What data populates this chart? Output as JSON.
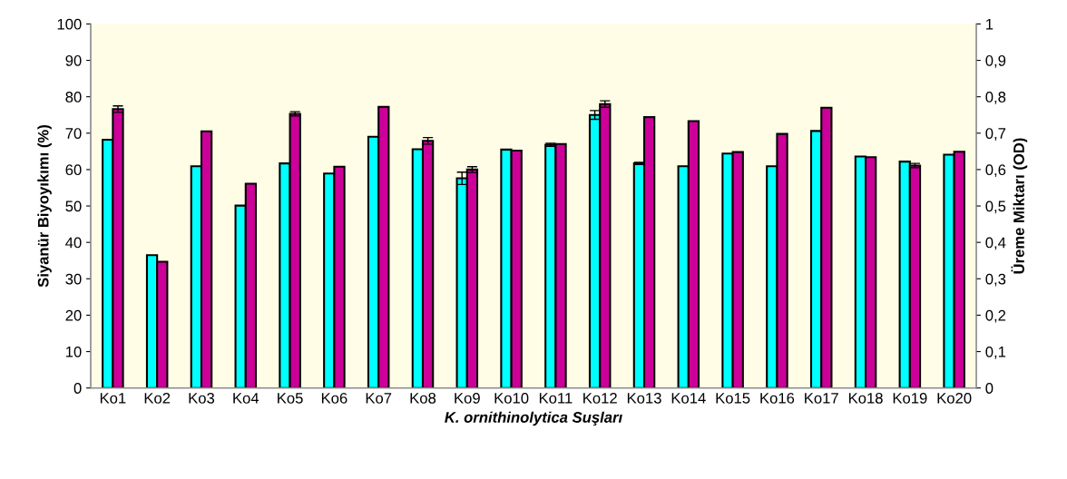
{
  "chart_data": {
    "type": "bar",
    "categories": [
      "Ko1",
      "Ko2",
      "Ko3",
      "Ko4",
      "Ko5",
      "Ko6",
      "Ko7",
      "Ko8",
      "Ko9",
      "Ko10",
      "Ko11",
      "Ko12",
      "Ko13",
      "Ko14",
      "Ko15",
      "Ko16",
      "Ko17",
      "Ko18",
      "Ko19",
      "Ko20"
    ],
    "series": [
      {
        "color": "#00ffff",
        "values": [
          68.2,
          36.5,
          60.9,
          50.1,
          61.7,
          58.9,
          69.0,
          65.6,
          57.6,
          65.5,
          66.8,
          75.0,
          61.7,
          60.9,
          64.4,
          60.9,
          70.6,
          63.6,
          62.2,
          64.1
        ],
        "errors": [
          null,
          null,
          null,
          null,
          null,
          null,
          null,
          null,
          1.7,
          null,
          0.4,
          1.2,
          0.3,
          null,
          null,
          null,
          null,
          null,
          null,
          null
        ]
      },
      {
        "color": "#cc0099",
        "axis": "y2",
        "values": [
          0.766,
          0.347,
          0.705,
          0.561,
          0.753,
          0.608,
          0.772,
          0.679,
          0.6,
          0.652,
          0.67,
          0.78,
          0.744,
          0.733,
          0.648,
          0.698,
          0.77,
          0.634,
          0.611,
          0.649
        ],
        "errors": [
          0.009,
          null,
          null,
          null,
          0.006,
          null,
          null,
          0.009,
          0.008,
          null,
          null,
          0.009,
          null,
          null,
          null,
          null,
          null,
          null,
          0.006,
          null
        ]
      }
    ],
    "xlabel": "K. ornithinolytica Suşları",
    "ylabel": "Siyanür Biyoyıkımı (%)",
    "y2label": "Üreme Miktarı (OD)",
    "ylim": [
      0,
      100
    ],
    "yticks": [
      0,
      10,
      20,
      30,
      40,
      50,
      60,
      70,
      80,
      90,
      100
    ],
    "y2lim": [
      0,
      1
    ],
    "y2ticks": [
      0,
      {
        "value": 0.1,
        "label": "0,1"
      },
      {
        "value": 0.2,
        "label": "0,2"
      },
      {
        "value": 0.3,
        "label": "0,3"
      },
      {
        "value": 0.4,
        "label": "0,4"
      },
      {
        "value": 0.5,
        "label": "0,5"
      },
      {
        "value": 0.6,
        "label": "0,6"
      },
      {
        "value": 0.7,
        "label": "0,7"
      },
      {
        "value": 0.8,
        "label": "0,8"
      },
      {
        "value": 0.9,
        "label": "0,9"
      },
      1
    ],
    "grid": false,
    "legend": false
  }
}
